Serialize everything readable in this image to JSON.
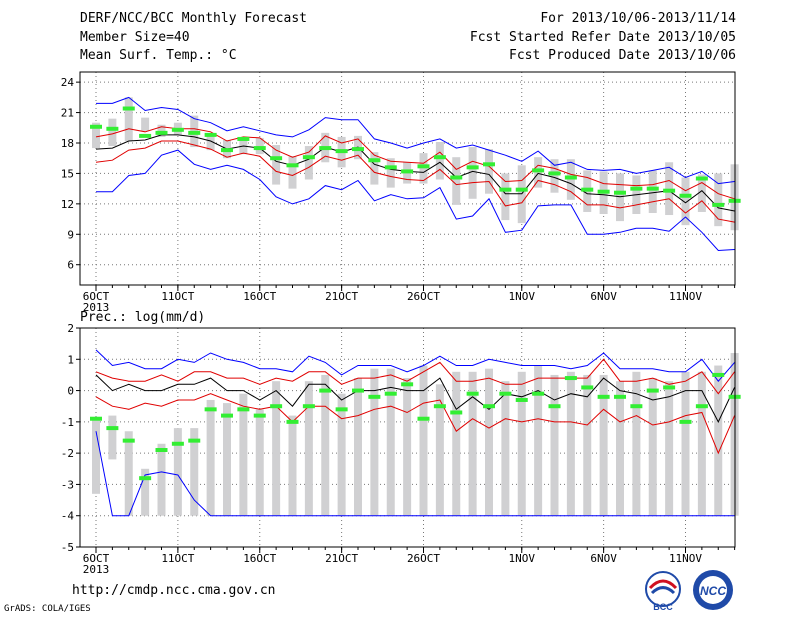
{
  "header": {
    "title": "DERF/NCC/BCC Monthly Forecast",
    "member": "Member Size=40",
    "variable": "Mean Surf. Temp.: °C",
    "period": "For 2013/10/06-2013/11/14",
    "started": "Fcst Started Refer Date 2013/10/05",
    "produced": "Fcst Produced Date 2013/10/06"
  },
  "footer": {
    "url": "http://cmdp.ncc.cma.gov.cn",
    "grads": "GrADS: COLA/IGES",
    "logo_bcc": "BCC",
    "logo_ncc": "NCC"
  },
  "colors": {
    "envelope": "#0000ff",
    "spread": "#e00000",
    "mean": "#000000",
    "obs": "#33ee33",
    "box": "#d0d0d2"
  },
  "chart_data": [
    {
      "type": "line",
      "title": "",
      "ylabel": "Mean Surf. Temp.: °C",
      "ylim": [
        4,
        25
      ],
      "yticks": [
        6,
        9,
        12,
        15,
        18,
        21,
        24
      ],
      "x_tick_labels": [
        "6OCT",
        "11OCT",
        "16OCT",
        "21OCT",
        "26OCT",
        "1NOV",
        "6NOV",
        "11NOV"
      ],
      "x_tick_days": [
        0,
        5,
        10,
        15,
        20,
        26,
        31,
        36
      ],
      "x_sublabel": "2013",
      "days": 40,
      "series": [
        {
          "role": "max",
          "values": [
            21.9,
            21.9,
            22.5,
            21.2,
            21.5,
            21.3,
            20.4,
            20.0,
            19.2,
            19.6,
            19.2,
            18.8,
            18.6,
            19.3,
            20.5,
            20.3,
            20.3,
            18.4,
            18.0,
            17.5,
            18.0,
            18.4,
            17.5,
            17.8,
            17.3,
            16.8,
            16.2,
            17.2,
            15.8,
            16.1,
            15.4,
            15.3,
            15.4,
            15.0,
            15.3,
            15.6,
            14.6,
            15.2,
            14.0,
            14.2
          ]
        },
        {
          "role": "upper",
          "values": [
            18.6,
            18.9,
            19.4,
            19.1,
            19.6,
            19.4,
            19.4,
            19.1,
            18.2,
            18.6,
            18.5,
            17.3,
            16.6,
            17.1,
            18.7,
            18.0,
            18.4,
            16.8,
            16.2,
            16.1,
            16.0,
            17.1,
            15.4,
            16.2,
            15.7,
            14.2,
            14.3,
            15.8,
            15.5,
            14.9,
            14.6,
            14.0,
            13.9,
            13.8,
            13.9,
            14.3,
            13.3,
            14.1,
            13.0,
            12.5
          ]
        },
        {
          "role": "mean",
          "values": [
            17.4,
            17.5,
            18.2,
            18.3,
            18.8,
            18.8,
            18.6,
            18.2,
            17.4,
            17.7,
            17.5,
            16.2,
            15.8,
            16.4,
            17.6,
            17.1,
            17.6,
            15.9,
            15.4,
            15.2,
            15.1,
            16.1,
            14.6,
            15.2,
            14.9,
            13.0,
            13.0,
            15.0,
            14.6,
            14.0,
            13.0,
            12.9,
            12.7,
            12.9,
            13.1,
            13.3,
            12.1,
            13.3,
            11.6,
            11.3
          ]
        },
        {
          "role": "lower",
          "values": [
            16.1,
            16.3,
            17.3,
            17.5,
            18.2,
            18.2,
            17.8,
            17.4,
            16.6,
            17.0,
            16.7,
            15.2,
            14.8,
            15.6,
            16.7,
            16.3,
            16.8,
            15.1,
            14.7,
            14.4,
            14.3,
            15.4,
            13.9,
            14.1,
            14.2,
            11.8,
            12.1,
            14.3,
            13.9,
            13.2,
            11.9,
            11.9,
            11.6,
            11.9,
            12.2,
            12.5,
            11.1,
            12.3,
            10.5,
            10.2
          ]
        },
        {
          "role": "min",
          "values": [
            13.2,
            13.2,
            14.8,
            15.0,
            16.8,
            17.3,
            15.9,
            15.4,
            15.8,
            15.4,
            14.4,
            12.7,
            12.0,
            12.5,
            13.8,
            13.4,
            14.3,
            12.3,
            12.9,
            12.5,
            12.6,
            13.6,
            10.5,
            10.8,
            12.5,
            9.2,
            9.4,
            11.8,
            11.9,
            11.9,
            9.0,
            9.0,
            9.2,
            9.6,
            9.6,
            9.3,
            10.7,
            9.2,
            7.4,
            7.5
          ]
        },
        {
          "role": "obs",
          "values": [
            19.6,
            19.4,
            21.4,
            18.7,
            19.0,
            19.3,
            19.0,
            18.8,
            17.3,
            18.4,
            17.5,
            16.5,
            15.8,
            16.6,
            17.5,
            17.2,
            17.4,
            16.3,
            15.6,
            15.2,
            15.7,
            16.6,
            14.6,
            15.6,
            15.9,
            13.4,
            13.4,
            15.3,
            15.0,
            14.6,
            13.4,
            13.2,
            13.1,
            13.5,
            13.5,
            13.3,
            12.8,
            14.5,
            11.9,
            12.3
          ]
        },
        {
          "role": "box_top",
          "values": [
            20.0,
            20.4,
            22.5,
            20.5,
            19.8,
            20.0,
            20.7,
            18.9,
            18.3,
            18.6,
            18.5,
            17.8,
            16.7,
            17.7,
            19.0,
            18.6,
            18.7,
            17.1,
            16.5,
            16.1,
            17.0,
            18.1,
            16.6,
            17.6,
            17.4,
            15.0,
            15.8,
            16.6,
            16.4,
            16.4,
            15.3,
            15.2,
            15.0,
            14.8,
            15.3,
            16.1,
            14.6,
            14.9,
            15.0,
            15.9
          ]
        },
        {
          "role": "box_bottom",
          "values": [
            17.5,
            17.7,
            18.2,
            19.2,
            18.6,
            18.8,
            17.6,
            17.3,
            16.5,
            16.9,
            16.9,
            13.9,
            13.5,
            14.4,
            16.1,
            15.6,
            16.4,
            13.9,
            13.6,
            14.0,
            14.0,
            14.4,
            11.9,
            12.5,
            13.0,
            10.4,
            10.1,
            13.6,
            13.1,
            12.4,
            11.2,
            11.0,
            10.3,
            11.0,
            11.1,
            10.9,
            9.9,
            11.2,
            9.8,
            9.4
          ]
        }
      ]
    },
    {
      "type": "line",
      "title": "",
      "ylabel": "Prec.: log(mm/d)",
      "ylim": [
        -5,
        2
      ],
      "yticks": [
        -5,
        -4,
        -3,
        -2,
        -1,
        0,
        1,
        2
      ],
      "x_tick_labels": [
        "6OCT",
        "11OCT",
        "16OCT",
        "21OCT",
        "26OCT",
        "1NOV",
        "6NOV",
        "11NOV"
      ],
      "x_tick_days": [
        0,
        5,
        10,
        15,
        20,
        26,
        31,
        36
      ],
      "x_sublabel": "2013",
      "days": 40,
      "series": [
        {
          "role": "max",
          "values": [
            1.3,
            0.8,
            0.9,
            0.7,
            0.7,
            1.0,
            0.9,
            1.2,
            1.0,
            0.9,
            0.7,
            0.7,
            0.6,
            1.1,
            0.9,
            0.5,
            0.8,
            0.8,
            0.8,
            0.6,
            0.8,
            1.1,
            0.8,
            0.8,
            1.0,
            0.9,
            0.8,
            0.8,
            0.8,
            0.7,
            0.8,
            1.2,
            0.7,
            0.7,
            0.7,
            0.6,
            0.6,
            1.0,
            0.3,
            0.9
          ]
        },
        {
          "role": "upper",
          "values": [
            0.6,
            0.4,
            0.3,
            0.3,
            0.5,
            0.3,
            0.6,
            0.6,
            0.4,
            0.4,
            0.2,
            0.4,
            0.3,
            0.6,
            0.6,
            0.2,
            0.4,
            0.4,
            0.5,
            0.3,
            0.6,
            0.9,
            0.3,
            0.3,
            0.4,
            0.2,
            0.2,
            0.4,
            0.4,
            0.4,
            0.4,
            1.0,
            0.3,
            0.3,
            0.4,
            0.2,
            0.3,
            0.6,
            -0.1,
            0.6
          ]
        },
        {
          "role": "mean",
          "values": [
            0.5,
            0.0,
            0.2,
            0.0,
            0.0,
            0.2,
            0.2,
            0.4,
            0.0,
            0.0,
            -0.3,
            0.0,
            -0.5,
            0.2,
            0.2,
            -0.3,
            0.0,
            0.0,
            0.1,
            0.0,
            0.0,
            0.4,
            -0.6,
            -0.2,
            -0.6,
            -0.1,
            -0.2,
            0.0,
            -0.3,
            -0.1,
            -0.2,
            0.4,
            0.0,
            -0.1,
            -0.3,
            -0.2,
            0.0,
            0.0,
            -1.0,
            0.1
          ]
        },
        {
          "role": "lower",
          "values": [
            -0.2,
            -0.5,
            -0.6,
            -0.4,
            -0.5,
            -0.3,
            -0.3,
            -0.1,
            -0.3,
            -0.5,
            -0.6,
            -0.5,
            -1.0,
            -0.5,
            -0.5,
            -0.9,
            -0.8,
            -0.6,
            -0.5,
            -0.7,
            -0.4,
            -0.3,
            -1.3,
            -0.9,
            -1.2,
            -0.9,
            -1.0,
            -0.9,
            -1.0,
            -1.0,
            -1.1,
            -0.6,
            -1.0,
            -0.8,
            -1.1,
            -1.0,
            -0.8,
            -0.7,
            -2.0,
            -0.8
          ]
        },
        {
          "role": "min",
          "values": [
            -1.3,
            -4.0,
            -4.0,
            -2.7,
            -2.6,
            -2.7,
            -3.5,
            -4.0,
            -4.0,
            -4.0,
            -4.0,
            -4.0,
            -4.0,
            -4.0,
            -4.0,
            -4.0,
            -4.0,
            -4.0,
            -4.0,
            -4.0,
            -4.0,
            -4.0,
            -4.0,
            -4.0,
            -4.0,
            -4.0,
            -4.0,
            -4.0,
            -4.0,
            -4.0,
            -4.0,
            -4.0,
            -4.0,
            -4.0,
            -4.0,
            -4.0,
            -4.0,
            -4.0,
            -4.0,
            -4.0
          ]
        },
        {
          "role": "obs",
          "values": [
            -0.9,
            -1.2,
            -1.6,
            -2.8,
            -1.9,
            -1.7,
            -1.6,
            -0.6,
            -0.8,
            -0.6,
            -0.8,
            -0.5,
            -1.0,
            -0.5,
            0.0,
            -0.6,
            0.0,
            -0.2,
            -0.1,
            0.2,
            -0.9,
            -0.5,
            -0.7,
            -0.1,
            -0.5,
            -0.1,
            -0.3,
            -0.1,
            -0.5,
            0.4,
            0.1,
            -0.2,
            -0.2,
            -0.5,
            0.0,
            0.1,
            -1.0,
            -0.5,
            0.5,
            -0.2
          ]
        },
        {
          "role": "box_top",
          "values": [
            -0.9,
            -0.8,
            -1.3,
            -2.5,
            -1.7,
            -1.2,
            -1.2,
            -0.3,
            -0.4,
            -0.1,
            -0.6,
            0.3,
            -0.8,
            0.3,
            0.5,
            -0.1,
            0.4,
            0.7,
            0.7,
            0.4,
            0.8,
            0.2,
            0.6,
            0.6,
            0.7,
            0.3,
            0.6,
            0.8,
            0.5,
            0.6,
            0.5,
            0.5,
            0.3,
            0.6,
            0.4,
            0.3,
            0.6,
            0.6,
            0.8,
            1.2
          ]
        },
        {
          "role": "box_bottom",
          "values": [
            -3.3,
            -2.2,
            -4.0,
            -4.0,
            -4.0,
            -4.0,
            -4.0,
            -4.0,
            -4.0,
            -4.0,
            -4.0,
            -4.0,
            -4.0,
            -4.0,
            -4.0,
            -4.0,
            -4.0,
            -4.0,
            -4.0,
            -4.0,
            -4.0,
            -4.0,
            -4.0,
            -4.0,
            -4.0,
            -4.0,
            -4.0,
            -4.0,
            -4.0,
            -4.0,
            -4.0,
            -4.0,
            -4.0,
            -4.0,
            -4.0,
            -4.0,
            -4.0,
            -4.0,
            -4.0,
            -4.0
          ]
        }
      ]
    }
  ]
}
